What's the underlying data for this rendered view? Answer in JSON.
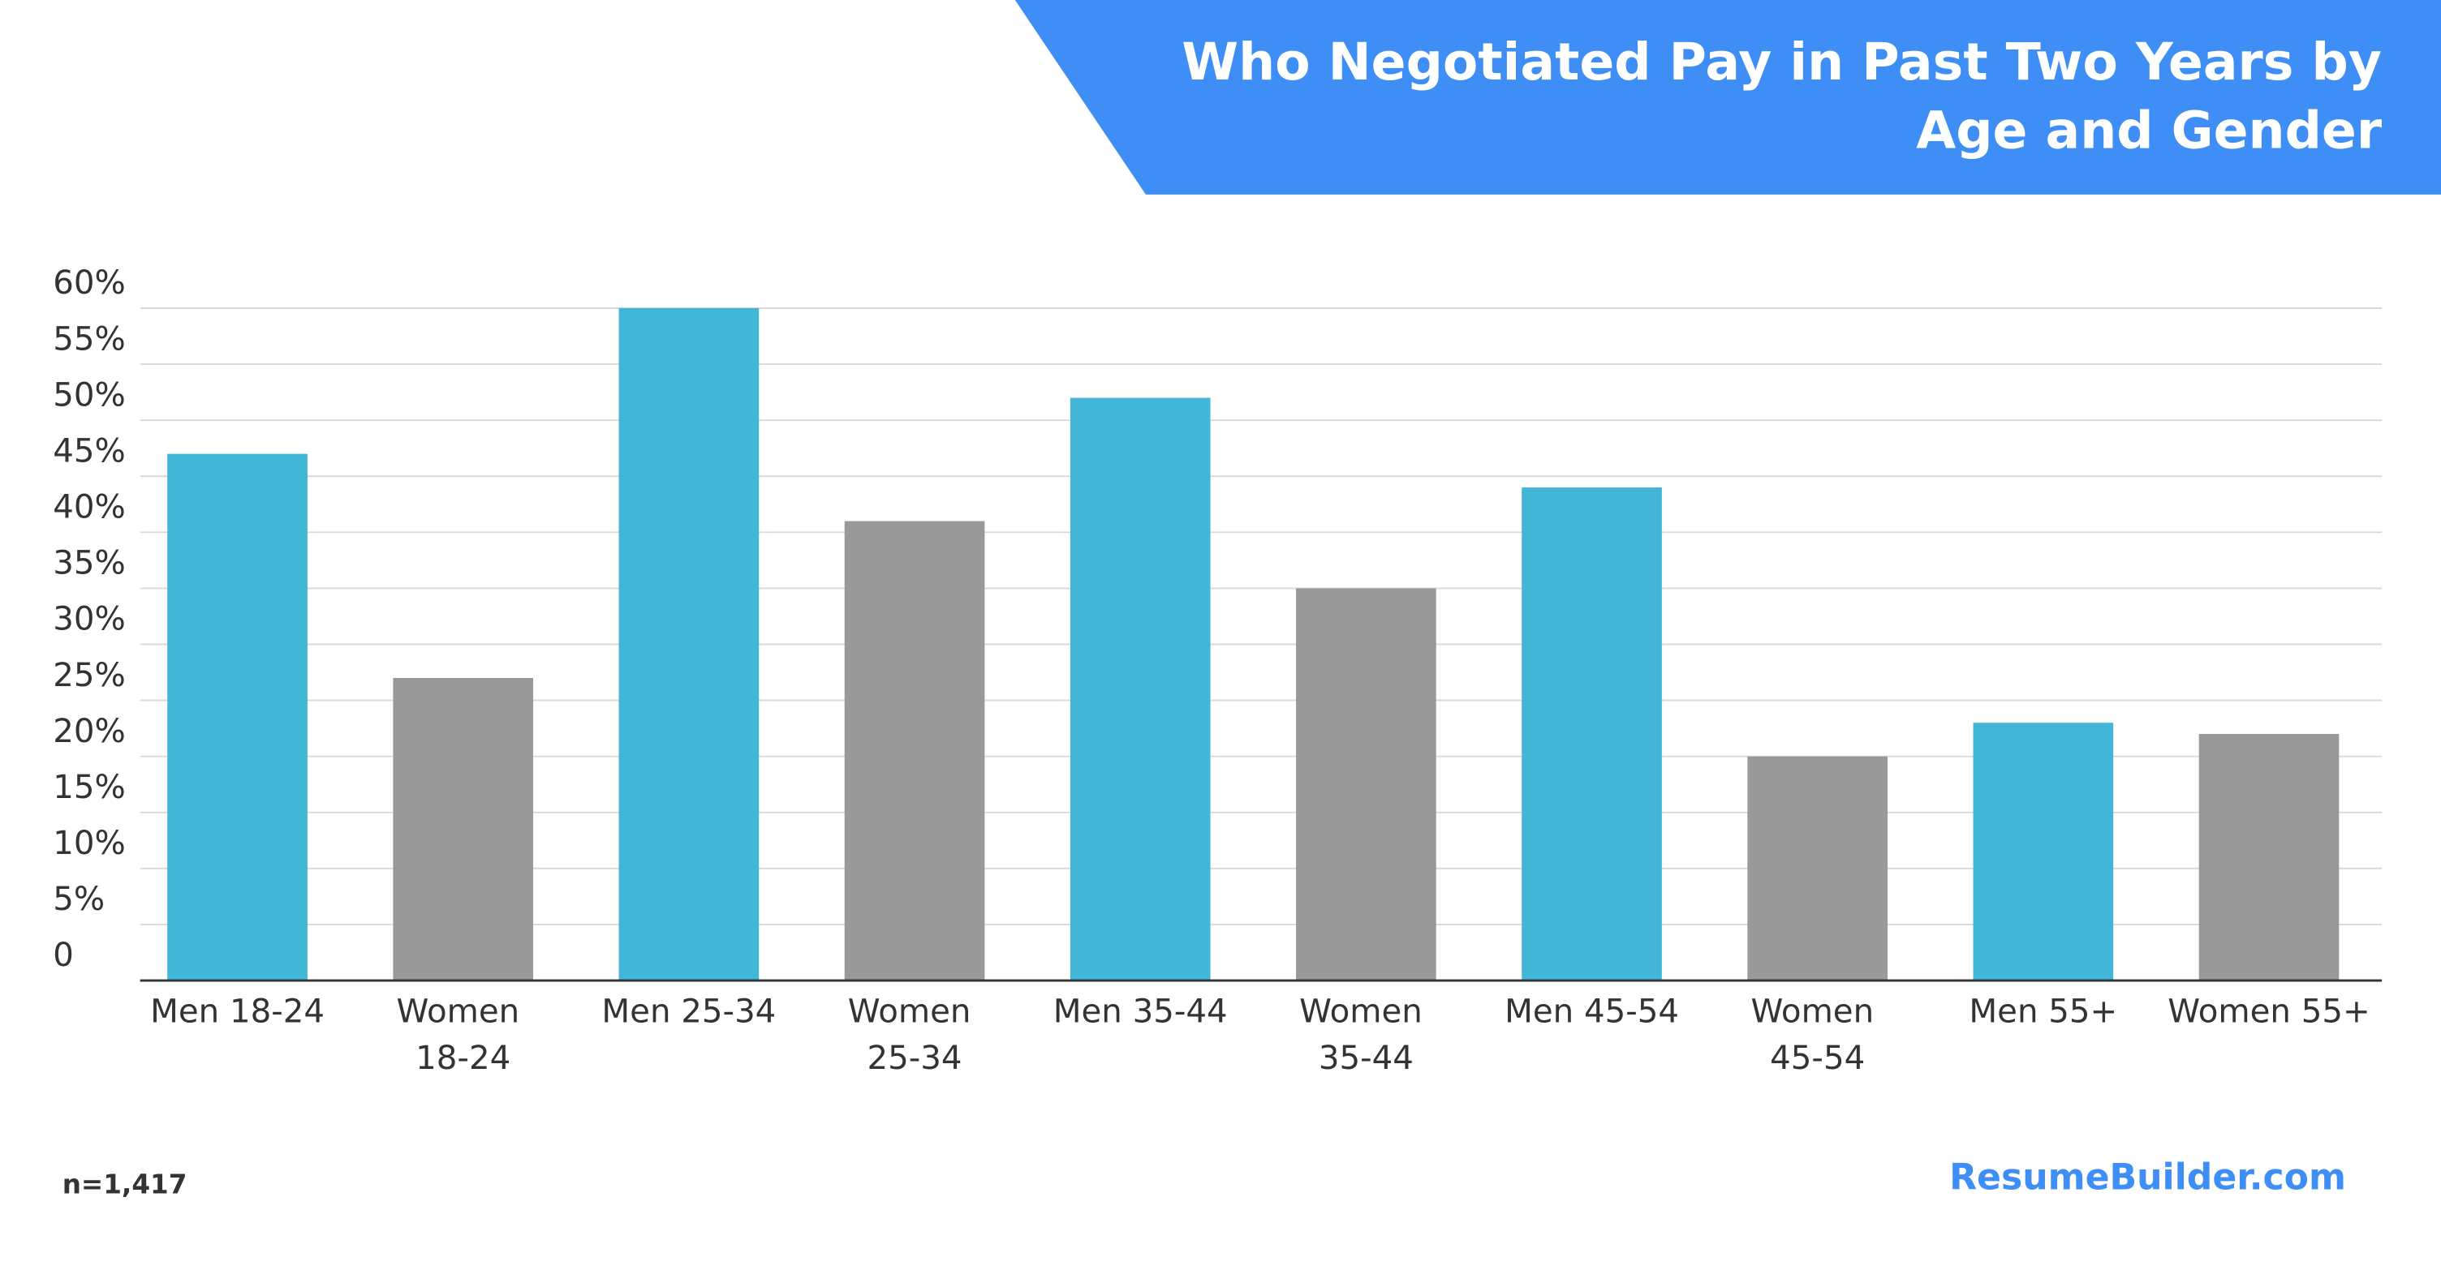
{
  "chart_data": {
    "type": "bar",
    "title": "Who Negotiated Pay in Past Two Years by Age and Gender",
    "categories": [
      "Men 18-24",
      "Women 18-24",
      "Men 25-34",
      "Women 25-34",
      "Men 35-44",
      "Women 35-44",
      "Men 45-54",
      "Women 45-54",
      "Men 55+",
      "Women 55+"
    ],
    "values": [
      47,
      27,
      60,
      41,
      52,
      35,
      44,
      20,
      23,
      22
    ],
    "colors": [
      "#41b6d6",
      "#999999",
      "#41b6d6",
      "#999999",
      "#41b6d6",
      "#999999",
      "#41b6d6",
      "#999999",
      "#41b6d6",
      "#999999"
    ],
    "ylim": [
      0,
      60
    ],
    "yticks": [
      0,
      {
        "value": 5,
        "label": "5%"
      },
      {
        "value": 10,
        "label": "10%"
      },
      {
        "value": 15,
        "label": "15%"
      },
      {
        "value": 20,
        "label": "20%"
      },
      {
        "value": 25,
        "label": "25%"
      },
      {
        "value": 30,
        "label": "30%"
      },
      {
        "value": 35,
        "label": "35%"
      },
      {
        "value": 40,
        "label": "40%"
      },
      {
        "value": 45,
        "label": "45%"
      },
      {
        "value": 50,
        "label": "50%"
      },
      {
        "value": 55,
        "label": "55%"
      },
      {
        "value": 60,
        "label": "60%"
      }
    ],
    "grid": true,
    "note": "n=1,417",
    "source": "ResumeBuilder.com"
  }
}
